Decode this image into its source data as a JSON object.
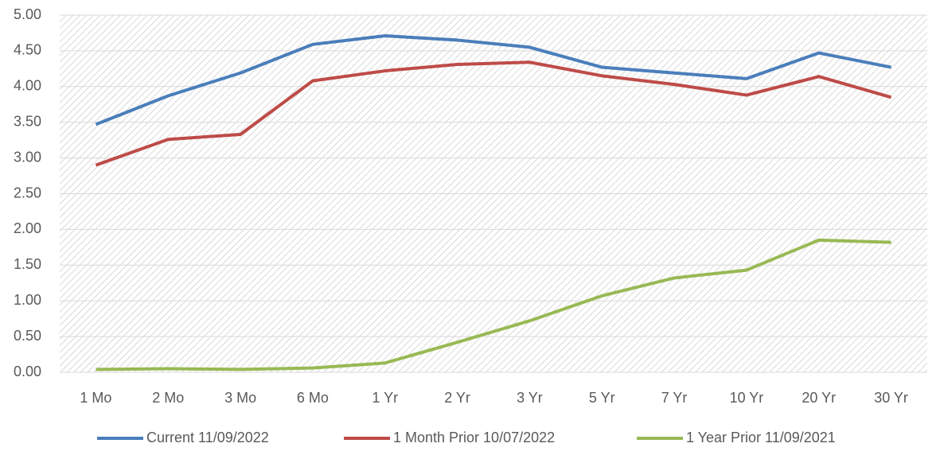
{
  "chart_data": {
    "type": "line",
    "categories": [
      "1 Mo",
      "2 Mo",
      "3 Mo",
      "6 Mo",
      "1 Yr",
      "2 Yr",
      "3 Yr",
      "5 Yr",
      "7 Yr",
      "10 Yr",
      "20 Yr",
      "30 Yr"
    ],
    "series": [
      {
        "name": "Current 11/09/2022",
        "color": "#4a7ebb",
        "values": [
          3.47,
          3.87,
          4.19,
          4.59,
          4.71,
          4.65,
          4.55,
          4.27,
          4.19,
          4.11,
          4.47,
          4.27
        ]
      },
      {
        "name": "1 Month Prior 10/07/2022",
        "color": "#be4b48",
        "values": [
          2.9,
          3.26,
          3.33,
          4.08,
          4.22,
          4.31,
          4.34,
          4.15,
          4.03,
          3.88,
          4.14,
          3.85
        ]
      },
      {
        "name": "1 Year Prior 11/09/2021",
        "color": "#98b954",
        "values": [
          0.04,
          0.05,
          0.04,
          0.06,
          0.13,
          0.42,
          0.72,
          1.07,
          1.32,
          1.43,
          1.85,
          1.82
        ]
      }
    ],
    "ylim": [
      0,
      5
    ],
    "yticks": [
      {
        "value": 0,
        "label": "0.00"
      },
      {
        "value": 0.5,
        "label": "0.50"
      },
      {
        "value": 1,
        "label": "1.00"
      },
      {
        "value": 1.5,
        "label": "1.50"
      },
      {
        "value": 2,
        "label": "2.00"
      },
      {
        "value": 2.5,
        "label": "2.50"
      },
      {
        "value": 3,
        "label": "3.00"
      },
      {
        "value": 3.5,
        "label": "3.50"
      },
      {
        "value": 4,
        "label": "4.00"
      },
      {
        "value": 4.5,
        "label": "4.50"
      },
      {
        "value": 5,
        "label": "5.00"
      }
    ],
    "grid": true,
    "legend": "bottom"
  }
}
